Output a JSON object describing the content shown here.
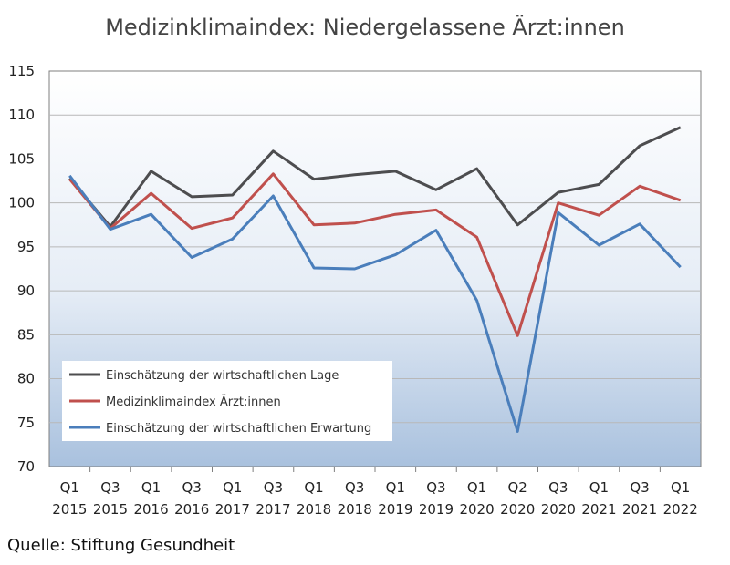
{
  "title": "Medizinklimaindex: Niedergelassene Ärzt:innen",
  "source": "Quelle: Stiftung Gesundheit",
  "chart_data": {
    "type": "line",
    "title": "Medizinklimaindex: Niedergelassene Ärzt:innen",
    "xlabel": "",
    "ylabel": "",
    "ylim": [
      70,
      115
    ],
    "yticks": [
      70,
      75,
      80,
      85,
      90,
      95,
      100,
      105,
      110,
      115
    ],
    "grid": true,
    "legend_position": "bottom-left",
    "categories": [
      [
        "Q1",
        "2015"
      ],
      [
        "Q3",
        "2015"
      ],
      [
        "Q1",
        "2016"
      ],
      [
        "Q3",
        "2016"
      ],
      [
        "Q1",
        "2017"
      ],
      [
        "Q3",
        "2017"
      ],
      [
        "Q1",
        "2018"
      ],
      [
        "Q3",
        "2018"
      ],
      [
        "Q1",
        "2019"
      ],
      [
        "Q3",
        "2019"
      ],
      [
        "Q1",
        "2020"
      ],
      [
        "Q2",
        "2020"
      ],
      [
        "Q3",
        "2020"
      ],
      [
        "Q1",
        "2021"
      ],
      [
        "Q3",
        "2021"
      ],
      [
        "Q1",
        "2022"
      ]
    ],
    "series": [
      {
        "name": "Einschätzung der wirtschaftlichen Lage",
        "color": "#4d4d4f",
        "values": [
          102.8,
          97.3,
          103.6,
          100.7,
          100.9,
          105.9,
          102.7,
          103.2,
          103.6,
          101.5,
          103.9,
          97.5,
          101.2,
          102.1,
          106.5,
          108.6
        ]
      },
      {
        "name": "Medizinklimaindex Ärzt:innen",
        "color": "#c0504d",
        "values": [
          102.7,
          97.1,
          101.1,
          97.1,
          98.3,
          103.3,
          97.5,
          97.7,
          98.7,
          99.2,
          96.1,
          84.9,
          100.0,
          98.6,
          101.9,
          100.3
        ]
      },
      {
        "name": "Einschätzung der wirtschaftlichen Erwartung",
        "color": "#4a7ebb",
        "values": [
          103.1,
          97.0,
          98.7,
          93.8,
          95.9,
          100.8,
          92.6,
          92.5,
          94.1,
          96.9,
          88.9,
          74.0,
          98.9,
          95.2,
          97.6,
          92.7
        ]
      }
    ]
  }
}
